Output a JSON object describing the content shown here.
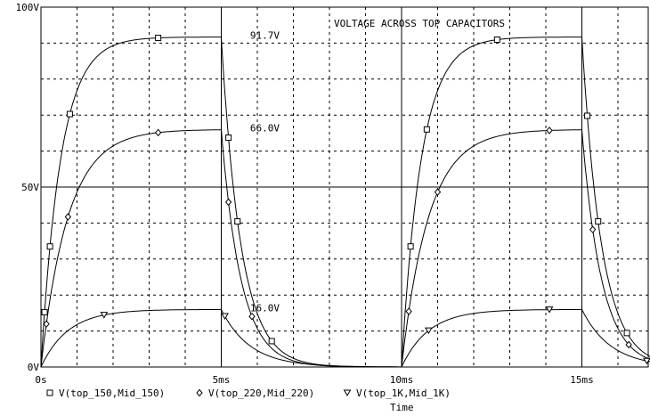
{
  "chart_data": {
    "type": "line",
    "title": "VOLTAGE ACROSS TOP CAPACITORS",
    "xlabel": "Time",
    "ylabel": "",
    "x_unit": "ms",
    "xlim": [
      0,
      17
    ],
    "ylim": [
      0,
      100
    ],
    "x_ticks": [
      0,
      5,
      10,
      15
    ],
    "x_tick_labels": [
      "0s",
      "5ms",
      "10ms",
      "15ms"
    ],
    "y_ticks": [
      0,
      50,
      100
    ],
    "y_tick_labels": [
      "0V",
      "50V",
      "100V"
    ],
    "grid": true,
    "legend_position": "bottom",
    "pulse": {
      "on_start": [
        0,
        10
      ],
      "on_end": [
        5,
        15
      ]
    },
    "series": [
      {
        "name": "V(top_150,Mid_150)",
        "marker": "square",
        "steady_value": 91.7,
        "rise_tau_ms": 0.55,
        "fall_tau_ms": 0.55,
        "marker_x": [
          0.1,
          0.25,
          0.8,
          3.25,
          5.2,
          5.45,
          6.4,
          10.25,
          10.7,
          12.65,
          15.15,
          15.45,
          16.25
        ],
        "x": [
          0,
          0.25,
          0.5,
          1,
          1.5,
          2,
          3,
          4,
          5,
          5.25,
          5.5,
          6,
          6.5,
          7,
          8,
          9,
          10,
          10.25,
          10.5,
          11,
          11.5,
          12,
          13,
          14,
          15,
          15.25,
          15.5,
          16,
          16.5,
          17
        ],
        "values": [
          0,
          33.5,
          54.8,
          76.1,
          85.1,
          88.9,
          91.1,
          91.6,
          91.7,
          58.2,
          37.0,
          14.9,
          6.0,
          2.4,
          0.4,
          0.1,
          0,
          33.5,
          54.8,
          76.1,
          85.1,
          88.9,
          91.1,
          91.6,
          91.7,
          58.2,
          37.0,
          14.9,
          6.0,
          2.4
        ]
      },
      {
        "name": "V(top_220,Mid_220)",
        "marker": "diamond",
        "steady_value": 66.0,
        "rise_tau_ms": 0.75,
        "fall_tau_ms": 0.55,
        "marker_x": [
          0.15,
          0.75,
          3.25,
          5.2,
          5.85,
          10.2,
          11.0,
          14.1,
          15.3,
          16.3
        ],
        "x": [
          0,
          0.25,
          0.5,
          1,
          1.5,
          2,
          3,
          4,
          5,
          5.25,
          5.5,
          6,
          6.5,
          7,
          8,
          9,
          10,
          10.25,
          10.5,
          11,
          11.5,
          12,
          13,
          14,
          15,
          15.25,
          15.5,
          16,
          16.5,
          17
        ],
        "values": [
          0,
          18.8,
          32.3,
          48.6,
          56.9,
          61.4,
          65.1,
          65.9,
          66.0,
          41.9,
          26.6,
          10.7,
          4.3,
          1.7,
          0.3,
          0,
          0,
          18.8,
          32.3,
          48.6,
          56.9,
          61.4,
          65.1,
          65.9,
          66.0,
          41.9,
          26.6,
          10.7,
          4.3,
          1.7
        ]
      },
      {
        "name": "V(top_1K,Mid_1K)",
        "marker": "triangle-down",
        "steady_value": 16.0,
        "rise_tau_ms": 0.75,
        "fall_tau_ms": 0.8,
        "marker_x": [
          1.75,
          5.1,
          10.75,
          14.1,
          16.8
        ],
        "x": [
          0,
          0.25,
          0.5,
          1,
          1.5,
          2,
          3,
          4,
          5,
          5.25,
          5.5,
          6,
          6.5,
          7,
          8,
          9,
          10,
          10.25,
          10.5,
          11,
          11.5,
          12,
          13,
          14,
          15,
          15.25,
          15.5,
          16,
          16.5,
          17
        ],
        "values": [
          0,
          4.6,
          7.8,
          11.8,
          13.8,
          14.9,
          15.8,
          16.0,
          16.0,
          11.7,
          8.6,
          4.6,
          2.4,
          1.3,
          0.4,
          0.1,
          0,
          4.6,
          7.8,
          11.8,
          13.8,
          14.9,
          15.8,
          16.0,
          16.0,
          11.7,
          8.6,
          4.6,
          2.4,
          1.3
        ]
      }
    ],
    "annotations": [
      {
        "text": "91.7V",
        "x": 5.8,
        "y": 91.7
      },
      {
        "text": "66.0V",
        "x": 5.8,
        "y": 66.0
      },
      {
        "text": "16.0V",
        "x": 5.8,
        "y": 16.0
      }
    ]
  }
}
